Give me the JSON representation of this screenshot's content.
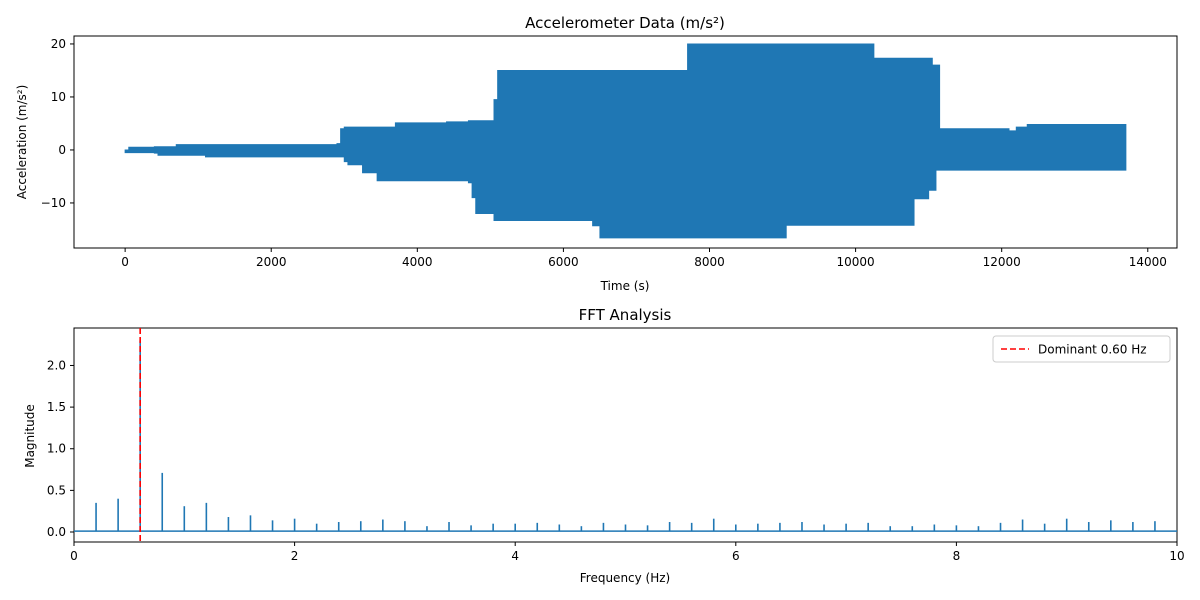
{
  "chart_data": [
    {
      "type": "area",
      "title": "Accelerometer Data (m/s²)",
      "xlabel": "Time (s)",
      "ylabel": "Acceleration (m/s²)",
      "xlim": [
        -700,
        14400
      ],
      "ylim": [
        -18.5,
        21.5
      ],
      "xticks": [
        0,
        2000,
        4000,
        6000,
        8000,
        10000,
        12000,
        14000
      ],
      "yticks": [
        -10,
        0,
        10,
        20
      ],
      "series": [
        {
          "color": "#1f77b4",
          "envelope": [
            {
              "x": 0,
              "upper": 0.0,
              "lower": -0.5
            },
            {
              "x": 50,
              "upper": 0.5,
              "lower": -0.5
            },
            {
              "x": 400,
              "upper": 0.6,
              "lower": -0.6
            },
            {
              "x": 450,
              "upper": 0.6,
              "lower": -1.0
            },
            {
              "x": 700,
              "upper": 1.0,
              "lower": -1.0
            },
            {
              "x": 1100,
              "upper": 1.0,
              "lower": -1.3
            },
            {
              "x": 2900,
              "upper": 1.2,
              "lower": -1.3
            },
            {
              "x": 2950,
              "upper": 4.0,
              "lower": -1.3
            },
            {
              "x": 3000,
              "upper": 4.3,
              "lower": -2.2
            },
            {
              "x": 3050,
              "upper": 4.3,
              "lower": -2.8
            },
            {
              "x": 3250,
              "upper": 4.3,
              "lower": -4.3
            },
            {
              "x": 3450,
              "upper": 4.3,
              "lower": -5.8
            },
            {
              "x": 3700,
              "upper": 5.1,
              "lower": -5.8
            },
            {
              "x": 4400,
              "upper": 5.3,
              "lower": -5.8
            },
            {
              "x": 4700,
              "upper": 5.5,
              "lower": -6.2
            },
            {
              "x": 4750,
              "upper": 5.5,
              "lower": -9.0
            },
            {
              "x": 4800,
              "upper": 5.5,
              "lower": -12.0
            },
            {
              "x": 5050,
              "upper": 9.5,
              "lower": -13.3
            },
            {
              "x": 5100,
              "upper": 15.0,
              "lower": -13.3
            },
            {
              "x": 6400,
              "upper": 15.0,
              "lower": -14.3
            },
            {
              "x": 6500,
              "upper": 15.0,
              "lower": -16.6
            },
            {
              "x": 7650,
              "upper": 15.0,
              "lower": -16.6
            },
            {
              "x": 7700,
              "upper": 20.0,
              "lower": -16.6
            },
            {
              "x": 9000,
              "upper": 20.0,
              "lower": -16.6
            },
            {
              "x": 9050,
              "upper": 20.0,
              "lower": -14.2
            },
            {
              "x": 10200,
              "upper": 20.0,
              "lower": -14.2
            },
            {
              "x": 10250,
              "upper": 17.3,
              "lower": -14.2
            },
            {
              "x": 10700,
              "upper": 17.3,
              "lower": -14.2
            },
            {
              "x": 10800,
              "upper": 17.3,
              "lower": -9.2
            },
            {
              "x": 11000,
              "upper": 17.3,
              "lower": -7.6
            },
            {
              "x": 11050,
              "upper": 16.0,
              "lower": -7.6
            },
            {
              "x": 11100,
              "upper": 16.0,
              "lower": -3.8
            },
            {
              "x": 11150,
              "upper": 4.0,
              "lower": -3.8
            },
            {
              "x": 12000,
              "upper": 4.0,
              "lower": -3.8
            },
            {
              "x": 12100,
              "upper": 3.6,
              "lower": -3.8
            },
            {
              "x": 12200,
              "upper": 4.3,
              "lower": -3.8
            },
            {
              "x": 12350,
              "upper": 4.8,
              "lower": -3.8
            },
            {
              "x": 13700,
              "upper": 4.8,
              "lower": -3.8
            }
          ]
        }
      ]
    },
    {
      "type": "line",
      "title": "FFT Analysis",
      "xlabel": "Frequency (Hz)",
      "ylabel": "Magnitude",
      "xlim": [
        0,
        10
      ],
      "ylim": [
        -0.12,
        2.45
      ],
      "xticks": [
        0,
        2,
        4,
        6,
        8,
        10
      ],
      "yticks": [
        0.0,
        0.5,
        1.0,
        1.5,
        2.0
      ],
      "legend_position": "top-right",
      "series": [
        {
          "color": "#1f77b4",
          "baseline": 0.01,
          "peaks": [
            {
              "x": 0.2,
              "y": 0.35
            },
            {
              "x": 0.4,
              "y": 0.4
            },
            {
              "x": 0.6,
              "y": 2.3
            },
            {
              "x": 0.8,
              "y": 0.71
            },
            {
              "x": 1.0,
              "y": 0.31
            },
            {
              "x": 1.2,
              "y": 0.35
            },
            {
              "x": 1.4,
              "y": 0.18
            },
            {
              "x": 1.6,
              "y": 0.2
            },
            {
              "x": 1.8,
              "y": 0.14
            },
            {
              "x": 2.0,
              "y": 0.16
            },
            {
              "x": 2.2,
              "y": 0.1
            },
            {
              "x": 2.4,
              "y": 0.12
            },
            {
              "x": 2.6,
              "y": 0.13
            },
            {
              "x": 2.8,
              "y": 0.15
            },
            {
              "x": 3.0,
              "y": 0.13
            },
            {
              "x": 3.2,
              "y": 0.07
            },
            {
              "x": 3.4,
              "y": 0.12
            },
            {
              "x": 3.6,
              "y": 0.08
            },
            {
              "x": 3.8,
              "y": 0.1
            },
            {
              "x": 4.0,
              "y": 0.1
            },
            {
              "x": 4.2,
              "y": 0.11
            },
            {
              "x": 4.4,
              "y": 0.09
            },
            {
              "x": 4.6,
              "y": 0.07
            },
            {
              "x": 4.8,
              "y": 0.11
            },
            {
              "x": 5.0,
              "y": 0.09
            },
            {
              "x": 5.2,
              "y": 0.08
            },
            {
              "x": 5.4,
              "y": 0.12
            },
            {
              "x": 5.6,
              "y": 0.11
            },
            {
              "x": 5.8,
              "y": 0.16
            },
            {
              "x": 6.0,
              "y": 0.09
            },
            {
              "x": 6.2,
              "y": 0.1
            },
            {
              "x": 6.4,
              "y": 0.11
            },
            {
              "x": 6.6,
              "y": 0.12
            },
            {
              "x": 6.8,
              "y": 0.09
            },
            {
              "x": 7.0,
              "y": 0.1
            },
            {
              "x": 7.2,
              "y": 0.11
            },
            {
              "x": 7.4,
              "y": 0.07
            },
            {
              "x": 7.6,
              "y": 0.07
            },
            {
              "x": 7.8,
              "y": 0.09
            },
            {
              "x": 8.0,
              "y": 0.08
            },
            {
              "x": 8.2,
              "y": 0.07
            },
            {
              "x": 8.4,
              "y": 0.11
            },
            {
              "x": 8.6,
              "y": 0.15
            },
            {
              "x": 8.8,
              "y": 0.1
            },
            {
              "x": 9.0,
              "y": 0.16
            },
            {
              "x": 9.2,
              "y": 0.12
            },
            {
              "x": 9.4,
              "y": 0.14
            },
            {
              "x": 9.6,
              "y": 0.12
            },
            {
              "x": 9.8,
              "y": 0.13
            }
          ]
        }
      ],
      "reference_lines": [
        {
          "name": "Dominant 0.60 Hz",
          "x": 0.6,
          "color": "#ff0000",
          "style": "dashed"
        }
      ]
    }
  ]
}
